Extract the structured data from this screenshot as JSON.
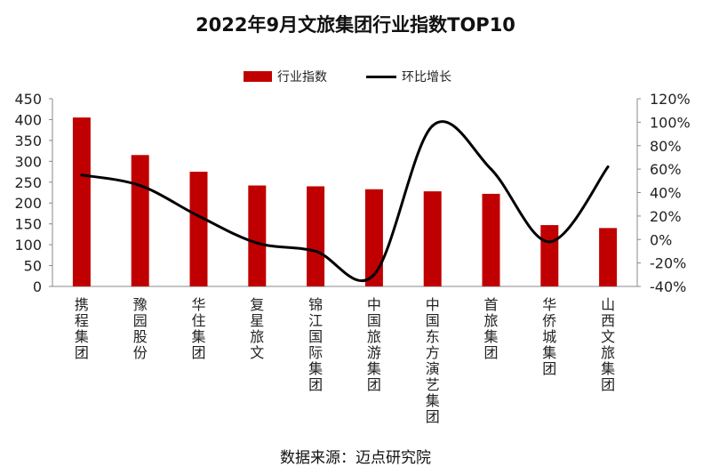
{
  "chart_data": {
    "type": "bar",
    "title": "2022年9月文旅集团行业指数TOP10",
    "categories": [
      "携程集团",
      "豫园股份",
      "华住集团",
      "复星旅文",
      "锦江国际集团",
      "中国旅游集团",
      "中国东方演艺集团",
      "首旅集团",
      "华侨城集团",
      "山西文旅集团"
    ],
    "series": [
      {
        "name": "行业指数",
        "kind": "bar",
        "axis": "left",
        "color": "#C00000",
        "values": [
          405,
          315,
          275,
          242,
          240,
          233,
          228,
          222,
          147,
          140
        ]
      },
      {
        "name": "环比增长",
        "kind": "line",
        "axis": "right",
        "color": "#000000",
        "values": [
          0.55,
          0.46,
          0.2,
          -0.03,
          -0.1,
          -0.3,
          0.97,
          0.6,
          -0.02,
          0.62
        ]
      }
    ],
    "y_left": {
      "min": 0,
      "max": 450,
      "ticks": [
        0,
        50,
        100,
        150,
        200,
        250,
        300,
        350,
        400,
        450
      ]
    },
    "y_right": {
      "min": -0.4,
      "max": 1.2,
      "ticks": [
        -0.4,
        -0.2,
        0,
        0.2,
        0.4,
        0.6,
        0.8,
        1.0,
        1.2
      ],
      "tick_labels": [
        "-40%",
        "-20%",
        "0%",
        "20%",
        "40%",
        "60%",
        "80%",
        "100%",
        "120%"
      ]
    },
    "legend_position": "top-center",
    "grid": false,
    "source": "数据来源：迈点研究院"
  }
}
